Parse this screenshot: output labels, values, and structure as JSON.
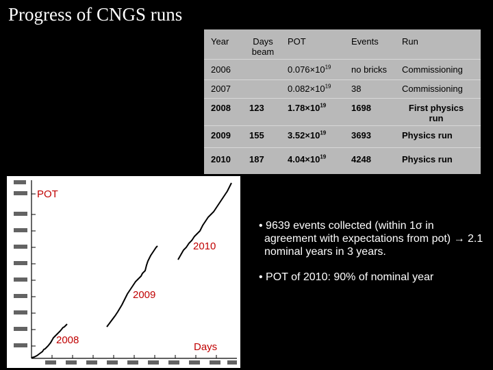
{
  "title": "Progress of CNGS runs",
  "table": {
    "headers": [
      "Year",
      "Days beam",
      "POT",
      "Events",
      "Run"
    ],
    "rows": [
      {
        "year": "2006",
        "days": "",
        "pot_base": "0.076×10",
        "pot_exp": "19",
        "events": "no bricks",
        "run": "Commissioning",
        "bold": false
      },
      {
        "year": "2007",
        "days": "",
        "pot_base": "0.082×10",
        "pot_exp": "19",
        "events": "38",
        "run": "Commissioning",
        "bold": false
      },
      {
        "year": "2008",
        "days": "123",
        "pot_base": "1.78×10",
        "pot_exp": "19",
        "events": "1698",
        "run": "First physics run",
        "bold": true
      },
      {
        "year": "2009",
        "days": "155",
        "pot_base": "3.52×10",
        "pot_exp": "19",
        "events": "3693",
        "run": "Physics run",
        "bold": true
      },
      {
        "year": "2010",
        "days": "187",
        "pot_base": "4.04×10",
        "pot_exp": "19",
        "events": "4248",
        "run": "Physics run",
        "bold": true
      }
    ]
  },
  "plot": {
    "annotations": {
      "pot": "POT",
      "days": "Days",
      "y2008": "2008",
      "y2009": "2009",
      "y2010": "2010"
    },
    "annotation_color": "#c00000",
    "curve_color": "#000000"
  },
  "bullets": [
    "• 9639 events collected (within 1σ in agreement with expectations from pot) → 2.1 nominal years in 3 years.",
    "• POT of 2010: 90% of nominal year"
  ],
  "colors": {
    "background": "#000000",
    "table_bg": "#b9b9b9",
    "text": "#ffffff"
  }
}
